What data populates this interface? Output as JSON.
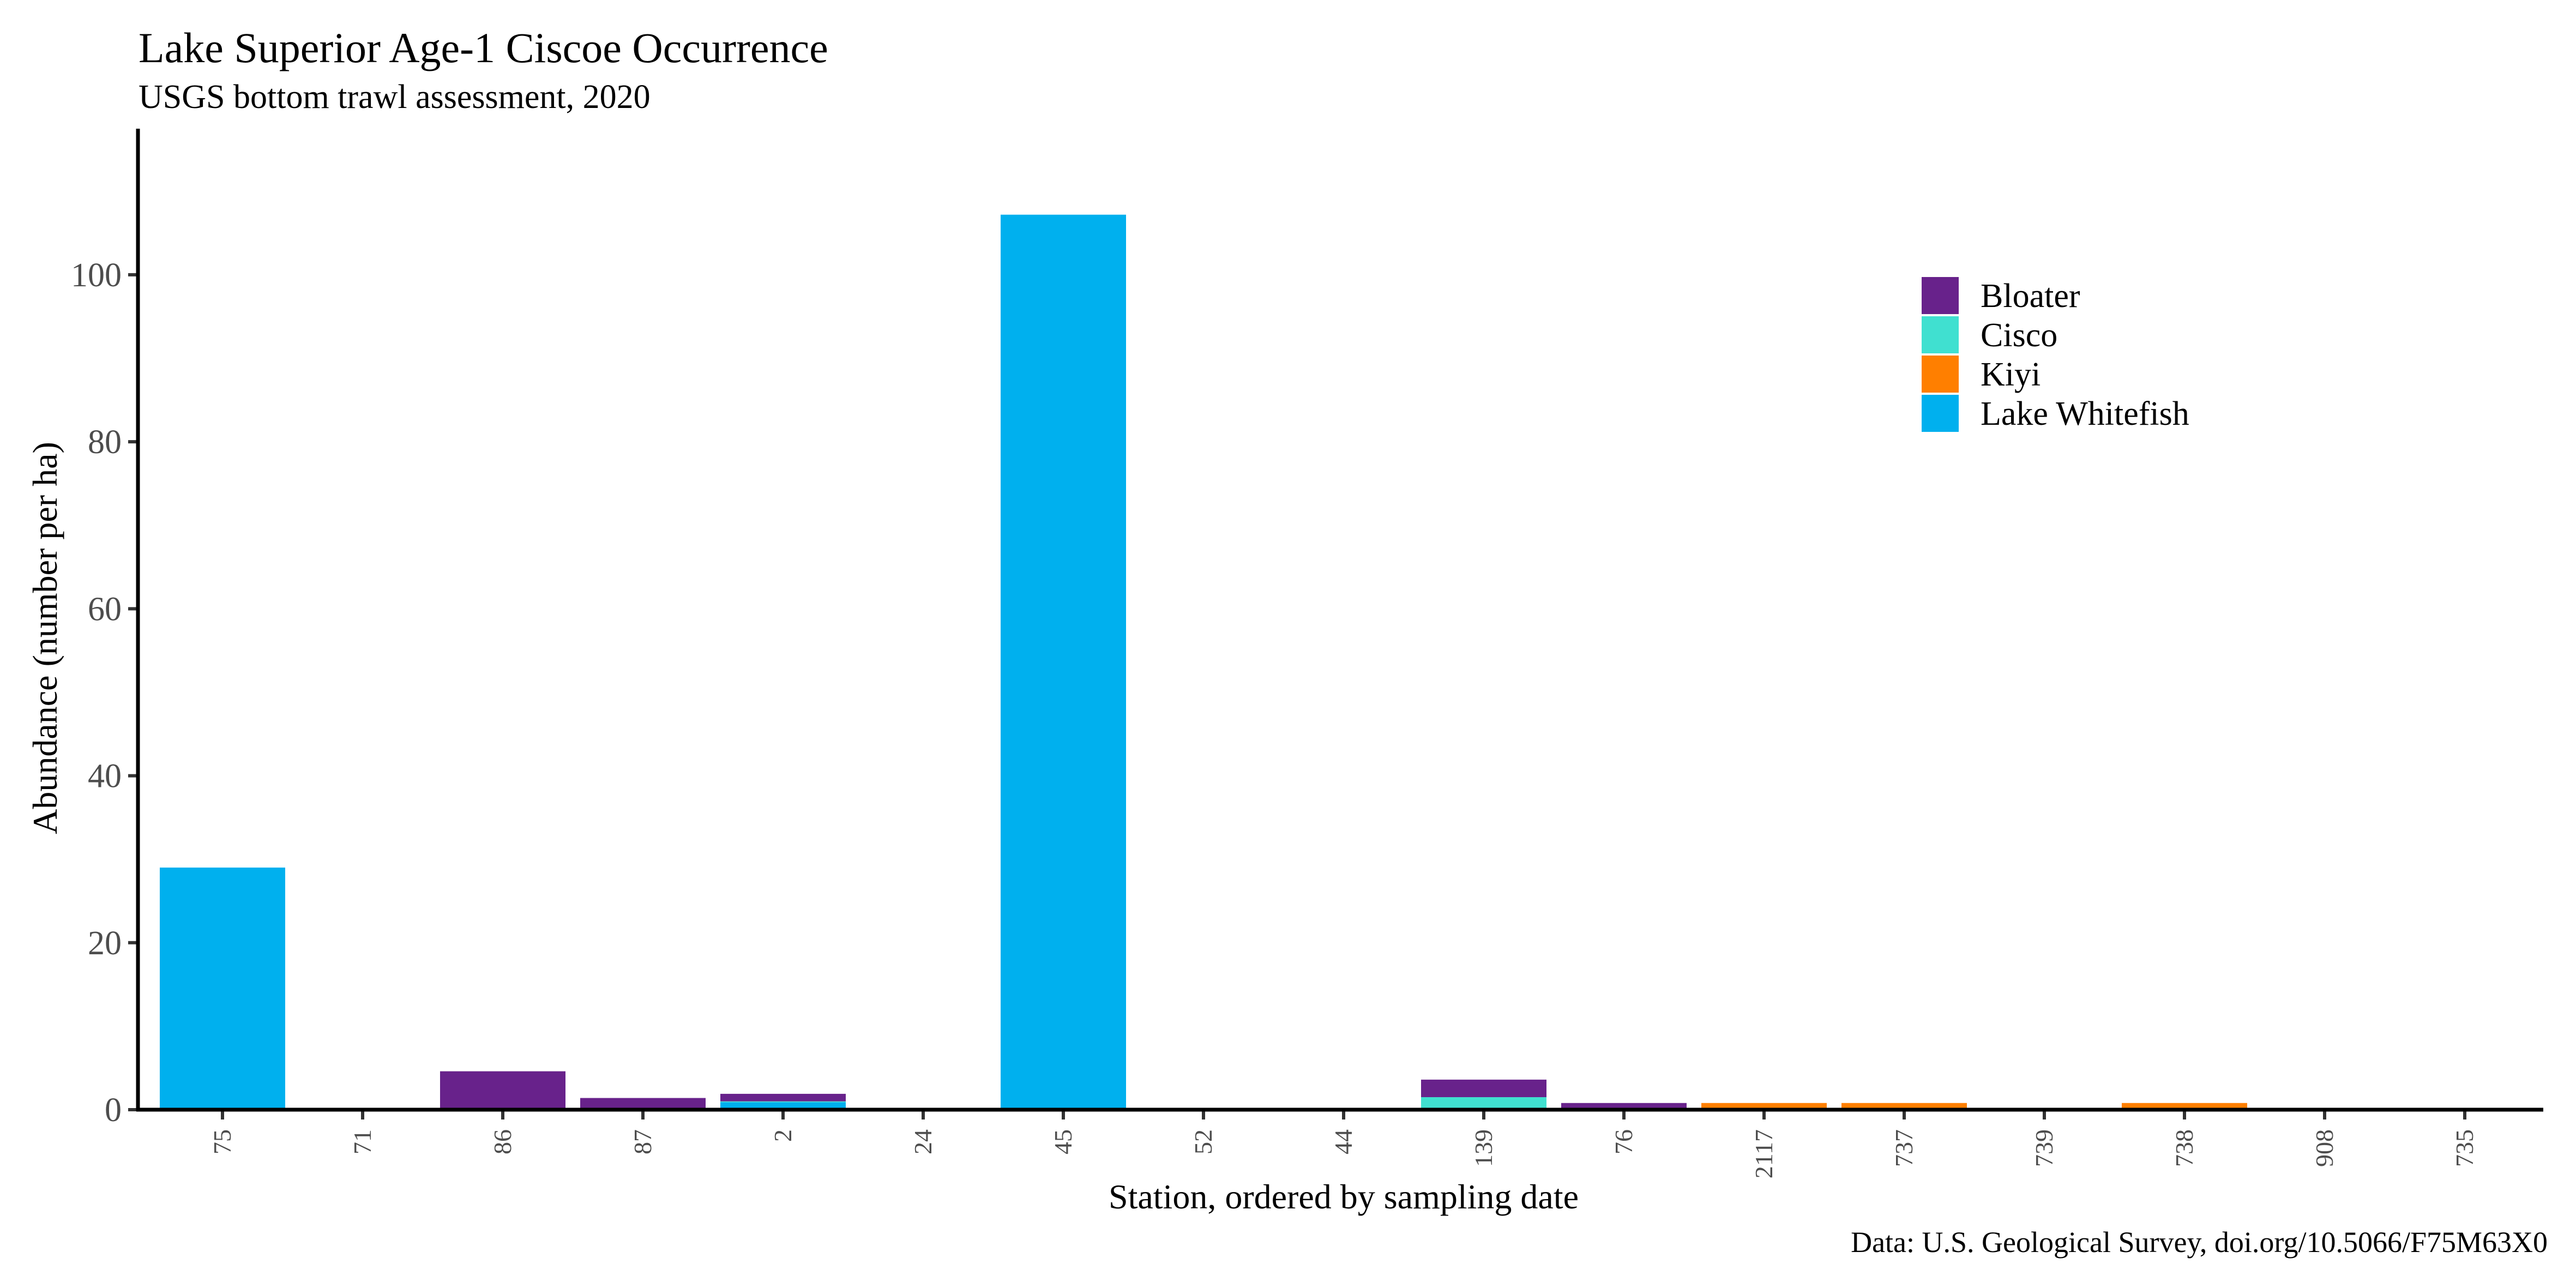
{
  "chart_data": {
    "type": "bar",
    "stacked": true,
    "title": "Lake Superior Age-1 Ciscoe Occurrence",
    "subtitle": "USGS bottom trawl assessment, 2020",
    "xlabel": "Station, ordered by sampling date",
    "ylabel": "Abundance (number per ha)",
    "caption": "Data: U.S. Geological Survey, doi.org/10.5066/F75M63X0",
    "categories": [
      "75",
      "71",
      "86",
      "87",
      "2",
      "24",
      "45",
      "52",
      "44",
      "139",
      "76",
      "2117",
      "737",
      "739",
      "738",
      "908",
      "735"
    ],
    "series": [
      {
        "name": "Lake Whitefish",
        "color": "#00B0EE",
        "values": [
          29,
          0,
          0,
          0,
          0.9,
          0,
          107.2,
          0,
          0,
          0,
          0,
          0,
          0,
          0,
          0,
          0,
          0
        ]
      },
      {
        "name": "Kiyi",
        "color": "#FF7F00",
        "values": [
          0,
          0,
          0,
          0,
          0,
          0,
          0,
          0,
          0,
          0,
          0,
          0.8,
          0.8,
          0,
          0.8,
          0,
          0
        ]
      },
      {
        "name": "Cisco",
        "color": "#40E0D0",
        "values": [
          0,
          0,
          0,
          0,
          0.1,
          0,
          0,
          0,
          0,
          1.5,
          0,
          0,
          0,
          0,
          0,
          0,
          0
        ]
      },
      {
        "name": "Bloater",
        "color": "#68228B",
        "values": [
          0,
          0,
          4.6,
          1.4,
          0.9,
          0,
          0,
          0,
          0,
          2.1,
          0.8,
          0,
          0,
          0,
          0,
          0,
          0
        ]
      }
    ],
    "legend_order": [
      "Bloater",
      "Cisco",
      "Kiyi",
      "Lake Whitefish"
    ],
    "legend_position": "top-right",
    "yticks": [
      0,
      20,
      40,
      60,
      80,
      100
    ],
    "ylim": [
      0,
      117.5
    ],
    "grid": false
  }
}
